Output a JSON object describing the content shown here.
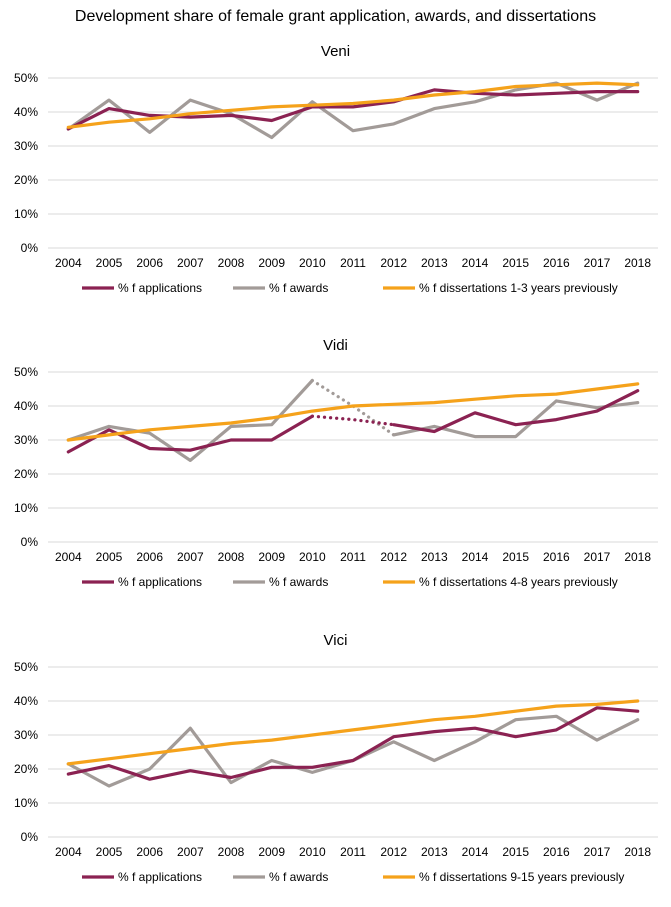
{
  "title": "Development share of female grant application, awards, and dissertations",
  "colors": {
    "applications": "#8b2252",
    "awards": "#a29b98",
    "dissertations": "#f5a21b",
    "grid": "#d9d9d9"
  },
  "chart_data": [
    {
      "type": "line",
      "title": "Veni",
      "categories": [
        "2004",
        "2005",
        "2006",
        "2007",
        "2008",
        "2009",
        "2010",
        "2011",
        "2012",
        "2013",
        "2014",
        "2015",
        "2016",
        "2017",
        "2018"
      ],
      "ylim": [
        0,
        50
      ],
      "yticks": [
        "0%",
        "10%",
        "20%",
        "30%",
        "40%",
        "50%"
      ],
      "series": [
        {
          "name": "% f applications",
          "key": "applications",
          "values": [
            35,
            41,
            39,
            38.5,
            39,
            37.5,
            41.5,
            41.5,
            43,
            46.5,
            45.5,
            45,
            45.5,
            46,
            46
          ]
        },
        {
          "name": "% f awards",
          "key": "awards",
          "values": [
            35,
            43.5,
            34,
            43.5,
            39.5,
            32.5,
            43,
            34.5,
            36.5,
            41,
            43,
            46.5,
            48.5,
            43.5,
            48.5
          ]
        },
        {
          "name": "% f dissertations 1-3 years previously",
          "key": "dissertations",
          "values": [
            35.5,
            37,
            38,
            39.5,
            40.5,
            41.5,
            42,
            42.5,
            43.5,
            45,
            46,
            47.5,
            48,
            48.5,
            48
          ]
        }
      ]
    },
    {
      "type": "line",
      "title": "Vidi",
      "categories": [
        "2004",
        "2005",
        "2006",
        "2007",
        "2008",
        "2009",
        "2010",
        "2011",
        "2012",
        "2013",
        "2014",
        "2015",
        "2016",
        "2017",
        "2018"
      ],
      "ylim": [
        0,
        50
      ],
      "yticks": [
        "0%",
        "10%",
        "20%",
        "30%",
        "40%",
        "50%"
      ],
      "series": [
        {
          "name": "% f applications",
          "key": "applications",
          "values": [
            26.5,
            33,
            27.5,
            27,
            30,
            30,
            37,
            36,
            34.5,
            32.5,
            38,
            34.5,
            36,
            38.5,
            44.5
          ],
          "dotted_segments": [
            [
              6,
              8
            ]
          ]
        },
        {
          "name": "% f awards",
          "key": "awards",
          "values": [
            30,
            34,
            32,
            24,
            34,
            34.5,
            47.5,
            40,
            31.5,
            34,
            31,
            31,
            41.5,
            39.5,
            41
          ],
          "dotted_segments": [
            [
              6,
              8
            ]
          ]
        },
        {
          "name": "% f dissertations 4-8 years previously",
          "key": "dissertations",
          "values": [
            30,
            31.5,
            33,
            34,
            35,
            36.5,
            38.5,
            40,
            40.5,
            41,
            42,
            43,
            43.5,
            45,
            46.5
          ]
        }
      ]
    },
    {
      "type": "line",
      "title": "Vici",
      "categories": [
        "2004",
        "2005",
        "2006",
        "2007",
        "2008",
        "2009",
        "2010",
        "2011",
        "2012",
        "2013",
        "2014",
        "2015",
        "2016",
        "2017",
        "2018"
      ],
      "ylim": [
        0,
        50
      ],
      "yticks": [
        "0%",
        "10%",
        "20%",
        "30%",
        "40%",
        "50%"
      ],
      "series": [
        {
          "name": "% f applications",
          "key": "applications",
          "values": [
            18.5,
            21,
            17,
            19.5,
            17.5,
            20.5,
            20.5,
            22.5,
            29.5,
            31,
            32,
            29.5,
            31.5,
            38,
            37
          ]
        },
        {
          "name": "% f awards",
          "key": "awards",
          "values": [
            21.5,
            15,
            20,
            32,
            16,
            22.5,
            19,
            22.5,
            28,
            22.5,
            28,
            34.5,
            35.5,
            28.5,
            34.5
          ]
        },
        {
          "name": "% f dissertations 9-15 years previously",
          "key": "dissertations",
          "values": [
            21.5,
            23,
            24.5,
            26,
            27.5,
            28.5,
            30,
            31.5,
            33,
            34.5,
            35.5,
            37,
            38.5,
            39,
            40
          ]
        }
      ]
    }
  ]
}
